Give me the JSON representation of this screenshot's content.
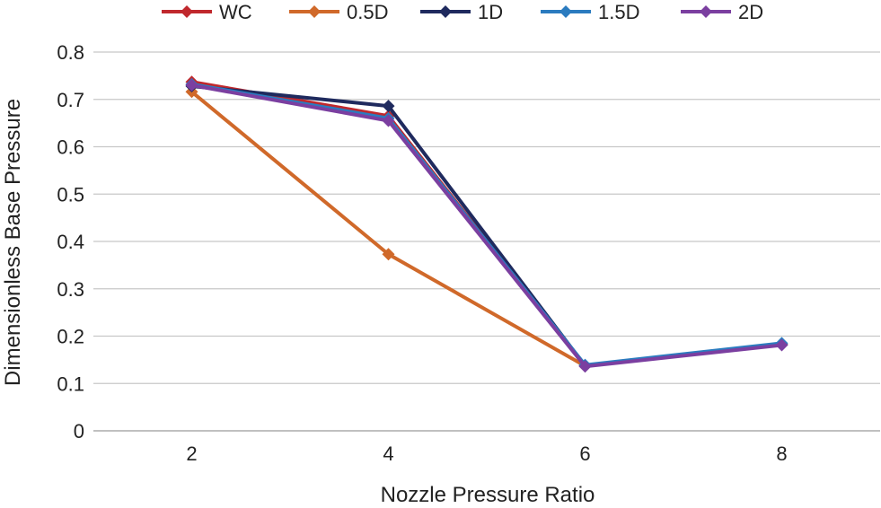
{
  "chart_data": {
    "type": "line",
    "title": "",
    "xlabel": "Nozzle Pressure Ratio",
    "ylabel": "Dimensionless Base Pressure",
    "x": [
      2,
      4,
      6,
      8
    ],
    "xlim": [
      1,
      9
    ],
    "ylim": [
      0,
      0.8
    ],
    "yticks": [
      "0",
      "0.1",
      "0.2",
      "0.3",
      "0.4",
      "0.5",
      "0.6",
      "0.7",
      "0.8"
    ],
    "xticks": [
      "2",
      "4",
      "6",
      "8"
    ],
    "grid": "horizontal",
    "legend_position": "top",
    "series": [
      {
        "name": "WC",
        "color": "#c0282d",
        "values": [
          0.737,
          0.665,
          0.137,
          0.182
        ]
      },
      {
        "name": "0.5D",
        "color": "#d0692a",
        "values": [
          0.716,
          0.373,
          0.137,
          null
        ]
      },
      {
        "name": "1D",
        "color": "#1f2a5e",
        "values": [
          0.728,
          0.686,
          0.137,
          0.182
        ]
      },
      {
        "name": "1.5D",
        "color": "#2b7bbf",
        "values": [
          0.732,
          0.66,
          0.139,
          0.185
        ]
      },
      {
        "name": "2D",
        "color": "#7b3fa0",
        "values": [
          0.73,
          0.655,
          0.136,
          0.181
        ]
      }
    ]
  }
}
